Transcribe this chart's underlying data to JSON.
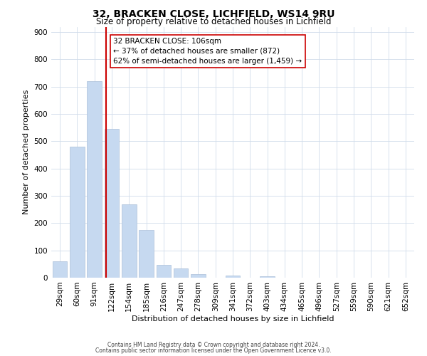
{
  "title": "32, BRACKEN CLOSE, LICHFIELD, WS14 9RU",
  "subtitle": "Size of property relative to detached houses in Lichfield",
  "xlabel": "Distribution of detached houses by size in Lichfield",
  "ylabel": "Number of detached properties",
  "bar_labels": [
    "29sqm",
    "60sqm",
    "91sqm",
    "122sqm",
    "154sqm",
    "185sqm",
    "216sqm",
    "247sqm",
    "278sqm",
    "309sqm",
    "341sqm",
    "372sqm",
    "403sqm",
    "434sqm",
    "465sqm",
    "496sqm",
    "527sqm",
    "559sqm",
    "590sqm",
    "621sqm",
    "652sqm"
  ],
  "bar_values": [
    60,
    480,
    720,
    545,
    270,
    175,
    48,
    35,
    14,
    0,
    8,
    0,
    6,
    0,
    0,
    0,
    0,
    0,
    0,
    0,
    0
  ],
  "bar_color": "#c6d9f0",
  "bar_edge_color": "#aabfd8",
  "property_line_x": 2.67,
  "property_line_color": "#cc0000",
  "ylim": [
    0,
    920
  ],
  "yticks": [
    0,
    100,
    200,
    300,
    400,
    500,
    600,
    700,
    800,
    900
  ],
  "annotation_text": "32 BRACKEN CLOSE: 106sqm\n← 37% of detached houses are smaller (872)\n62% of semi-detached houses are larger (1,459) →",
  "annotation_box_color": "#ffffff",
  "annotation_box_edge": "#cc0000",
  "footer_line1": "Contains HM Land Registry data © Crown copyright and database right 2024.",
  "footer_line2": "Contains public sector information licensed under the Open Government Licence v3.0.",
  "grid_color": "#d0dcea",
  "background_color": "#ffffff",
  "title_fontsize": 10,
  "subtitle_fontsize": 8.5,
  "xlabel_fontsize": 8,
  "ylabel_fontsize": 8,
  "tick_fontsize": 7.5,
  "annotation_fontsize": 7.5,
  "footer_fontsize": 5.5
}
